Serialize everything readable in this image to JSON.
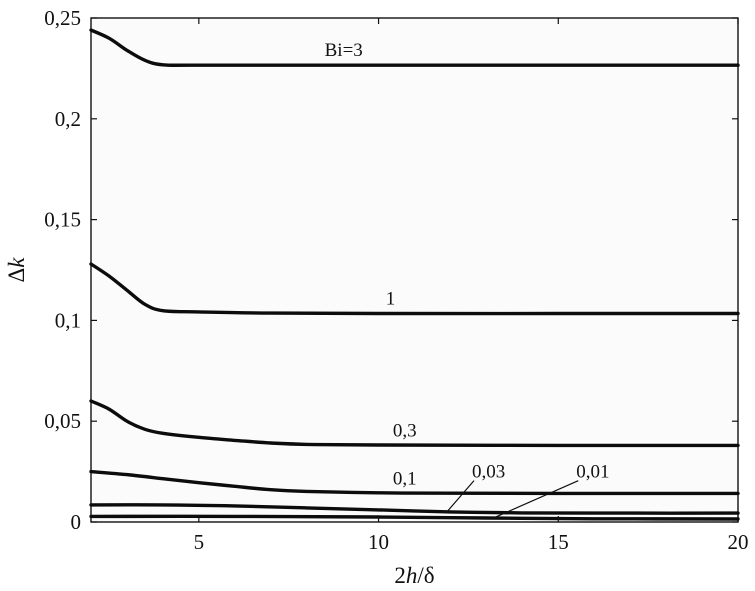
{
  "chart_data": {
    "type": "line",
    "xlabel": {
      "prefix": "2",
      "italic": "h",
      "suffix": "/δ"
    },
    "ylabel": {
      "prefix": "Δ",
      "italic": "k"
    },
    "xlim": [
      2,
      20
    ],
    "ylim": [
      0,
      0.25
    ],
    "xticks": [
      {
        "value": 5,
        "label": "5"
      },
      {
        "value": 10,
        "label": "10"
      },
      {
        "value": 15,
        "label": "15"
      },
      {
        "value": 20,
        "label": "20"
      }
    ],
    "yticks": [
      {
        "value": 0,
        "label": "0"
      },
      {
        "value": 0.05,
        "label": "0,05"
      },
      {
        "value": 0.1,
        "label": "0,1"
      },
      {
        "value": 0.15,
        "label": "0,15"
      },
      {
        "value": 0.2,
        "label": "0,2"
      },
      {
        "value": 0.25,
        "label": "0,25"
      }
    ],
    "grid": false,
    "legend": "none",
    "line_color": "#0c0c0c",
    "series": [
      {
        "name": "Bi=3",
        "points": [
          [
            2,
            0.244
          ],
          [
            2.5,
            0.24
          ],
          [
            3,
            0.234
          ],
          [
            3.5,
            0.229
          ],
          [
            4,
            0.2268
          ],
          [
            5,
            0.2266
          ],
          [
            10,
            0.2266
          ],
          [
            15,
            0.2266
          ],
          [
            20,
            0.2266
          ]
        ]
      },
      {
        "name": "1",
        "points": [
          [
            2,
            0.128
          ],
          [
            2.5,
            0.122
          ],
          [
            3,
            0.115
          ],
          [
            3.5,
            0.108
          ],
          [
            4,
            0.1048
          ],
          [
            5,
            0.1042
          ],
          [
            7,
            0.1036
          ],
          [
            10,
            0.1034
          ],
          [
            15,
            0.1034
          ],
          [
            20,
            0.1034
          ]
        ]
      },
      {
        "name": "0,3",
        "points": [
          [
            2,
            0.06
          ],
          [
            2.5,
            0.056
          ],
          [
            3,
            0.05
          ],
          [
            3.5,
            0.046
          ],
          [
            4,
            0.044
          ],
          [
            5,
            0.042
          ],
          [
            6,
            0.0405
          ],
          [
            7,
            0.0392
          ],
          [
            8,
            0.0385
          ],
          [
            10,
            0.0382
          ],
          [
            15,
            0.038
          ],
          [
            20,
            0.038
          ]
        ]
      },
      {
        "name": "0,1",
        "points": [
          [
            2,
            0.025
          ],
          [
            3,
            0.0235
          ],
          [
            4,
            0.0215
          ],
          [
            5,
            0.0195
          ],
          [
            6,
            0.0177
          ],
          [
            7,
            0.016
          ],
          [
            8,
            0.0152
          ],
          [
            10,
            0.0145
          ],
          [
            12,
            0.0143
          ],
          [
            15,
            0.0142
          ],
          [
            20,
            0.0142
          ]
        ]
      },
      {
        "name": "0,03",
        "points": [
          [
            2,
            0.0085
          ],
          [
            4,
            0.0085
          ],
          [
            6,
            0.008
          ],
          [
            8,
            0.007
          ],
          [
            10,
            0.006
          ],
          [
            12,
            0.005
          ],
          [
            14,
            0.0045
          ],
          [
            17,
            0.0044
          ],
          [
            20,
            0.0044
          ]
        ]
      },
      {
        "name": "0,01",
        "points": [
          [
            2,
            0.0028
          ],
          [
            6,
            0.0028
          ],
          [
            10,
            0.0025
          ],
          [
            13,
            0.002
          ],
          [
            16,
            0.0016
          ],
          [
            20,
            0.0015
          ]
        ]
      }
    ],
    "annotations": [
      {
        "text": "Bi=3",
        "series": "Bi=3",
        "at": [
          8.5,
          0.2266
        ],
        "leader": false
      },
      {
        "text": "1",
        "series": "1",
        "at": [
          10.2,
          0.1034
        ],
        "leader": false
      },
      {
        "text": "0,3",
        "series": "0,3",
        "at": [
          10.4,
          0.038
        ],
        "leader": false
      },
      {
        "text": "0,1",
        "series": "0,1",
        "at": [
          10.4,
          0.0142
        ],
        "leader": false
      },
      {
        "text": "0,03",
        "series": "0,03",
        "at": [
          12.6,
          0.022
        ],
        "leader": true,
        "leader_to": [
          11.9,
          0.005
        ]
      },
      {
        "text": "0,01",
        "series": "0,01",
        "at": [
          15.5,
          0.022
        ],
        "leader": true,
        "leader_to": [
          13.2,
          0.002
        ]
      }
    ]
  }
}
